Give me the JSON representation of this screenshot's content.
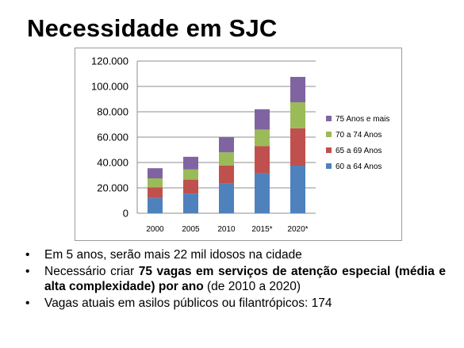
{
  "slide": {
    "title": "Necessidade em SJC"
  },
  "bullets": {
    "b1": "Em 5 anos, serão mais 22 mil idosos na cidade",
    "b2_pre": "Necessário criar ",
    "b2_bold": "75 vagas em serviços de atenção especial (média e alta complexidade) por ano",
    "b2_post": " (de 2010 a 2020)",
    "b3": "Vagas atuais em asilos públicos ou filantrópicos: 174"
  },
  "chart_data": {
    "type": "bar",
    "stacked": true,
    "categories": [
      "2000",
      "2005",
      "2010",
      "2015*",
      "2020*"
    ],
    "series": [
      {
        "name": "60 a 64 Anos",
        "color": "#4f81bd",
        "values": [
          12000,
          15500,
          23500,
          31500,
          37500
        ]
      },
      {
        "name": "65 a 69 Anos",
        "color": "#c0504d",
        "values": [
          8500,
          11000,
          14000,
          21500,
          29500
        ]
      },
      {
        "name": "70 a 74 Anos",
        "color": "#9bbb59",
        "values": [
          7000,
          8000,
          10500,
          13000,
          20500
        ]
      },
      {
        "name": "75 Anos e mais",
        "color": "#8064a2",
        "values": [
          8000,
          10000,
          12000,
          16000,
          20000
        ]
      }
    ],
    "yticks": [
      "0",
      "20.000",
      "40.000",
      "60.000",
      "80.000",
      "100.000",
      "120.000"
    ],
    "ylim": [
      0,
      120000
    ],
    "grid": true,
    "legend": "right"
  }
}
